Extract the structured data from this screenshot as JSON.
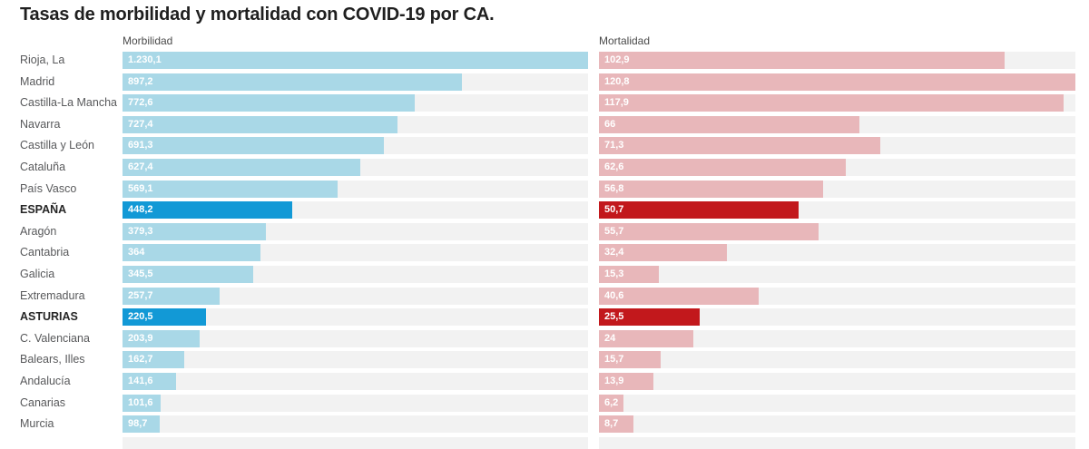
{
  "title": "Tasas de morbilidad y mortalidad con COVID-19 por CA.",
  "colors": {
    "morbidity_bar": "#a9d8e7",
    "morbidity_highlight": "#1299d6",
    "mortality_bar": "#e8b7ba",
    "mortality_highlight": "#c2181c",
    "track": "#f2f2f2",
    "value_text": "#ffffff"
  },
  "chart_data": {
    "type": "bar",
    "orientation": "horizontal",
    "title": "Tasas de morbilidad y mortalidad con COVID-19 por CA.",
    "grid": false,
    "legend": false,
    "columns": [
      {
        "key": "morbidity",
        "header": "Morbilidad",
        "max": 1230.1,
        "xlim": [
          0,
          1230.1
        ]
      },
      {
        "key": "mortality",
        "header": "Mortalidad",
        "max": 120.8,
        "xlim": [
          0,
          120.8
        ]
      }
    ],
    "rows": [
      {
        "label": "Rioja, La",
        "morbidity": 1230.1,
        "morbidity_label": "1.230,1",
        "mortality": 102.9,
        "mortality_label": "102,9",
        "highlight": false
      },
      {
        "label": "Madrid",
        "morbidity": 897.2,
        "morbidity_label": "897,2",
        "mortality": 120.8,
        "mortality_label": "120,8",
        "highlight": false
      },
      {
        "label": "Castilla-La Mancha",
        "morbidity": 772.6,
        "morbidity_label": "772,6",
        "mortality": 117.9,
        "mortality_label": "117,9",
        "highlight": false
      },
      {
        "label": "Navarra",
        "morbidity": 727.4,
        "morbidity_label": "727,4",
        "mortality": 66,
        "mortality_label": "66",
        "highlight": false
      },
      {
        "label": "Castilla y León",
        "morbidity": 691.3,
        "morbidity_label": "691,3",
        "mortality": 71.3,
        "mortality_label": "71,3",
        "highlight": false
      },
      {
        "label": "Cataluña",
        "morbidity": 627.4,
        "morbidity_label": "627,4",
        "mortality": 62.6,
        "mortality_label": "62,6",
        "highlight": false
      },
      {
        "label": "País Vasco",
        "morbidity": 569.1,
        "morbidity_label": "569,1",
        "mortality": 56.8,
        "mortality_label": "56,8",
        "highlight": false
      },
      {
        "label": "ESPAÑA",
        "morbidity": 448.2,
        "morbidity_label": "448,2",
        "mortality": 50.7,
        "mortality_label": "50,7",
        "highlight": true
      },
      {
        "label": "Aragón",
        "morbidity": 379.3,
        "morbidity_label": "379,3",
        "mortality": 55.7,
        "mortality_label": "55,7",
        "highlight": false
      },
      {
        "label": "Cantabria",
        "morbidity": 364,
        "morbidity_label": "364",
        "mortality": 32.4,
        "mortality_label": "32,4",
        "highlight": false
      },
      {
        "label": "Galicia",
        "morbidity": 345.5,
        "morbidity_label": "345,5",
        "mortality": 15.3,
        "mortality_label": "15,3",
        "highlight": false
      },
      {
        "label": "Extremadura",
        "morbidity": 257.7,
        "morbidity_label": "257,7",
        "mortality": 40.6,
        "mortality_label": "40,6",
        "highlight": false
      },
      {
        "label": "ASTURIAS",
        "morbidity": 220.5,
        "morbidity_label": "220,5",
        "mortality": 25.5,
        "mortality_label": "25,5",
        "highlight": true
      },
      {
        "label": "C. Valenciana",
        "morbidity": 203.9,
        "morbidity_label": "203,9",
        "mortality": 24,
        "mortality_label": "24",
        "highlight": false
      },
      {
        "label": "Balears, Illes",
        "morbidity": 162.7,
        "morbidity_label": "162,7",
        "mortality": 15.7,
        "mortality_label": "15,7",
        "highlight": false
      },
      {
        "label": "Andalucía",
        "morbidity": 141.6,
        "morbidity_label": "141,6",
        "mortality": 13.9,
        "mortality_label": "13,9",
        "highlight": false
      },
      {
        "label": "Canarias",
        "morbidity": 101.6,
        "morbidity_label": "101,6",
        "mortality": 6.2,
        "mortality_label": "6,2",
        "highlight": false
      },
      {
        "label": "Murcia",
        "morbidity": 98.7,
        "morbidity_label": "98,7",
        "mortality": 8.7,
        "mortality_label": "8,7",
        "highlight": false
      }
    ]
  }
}
